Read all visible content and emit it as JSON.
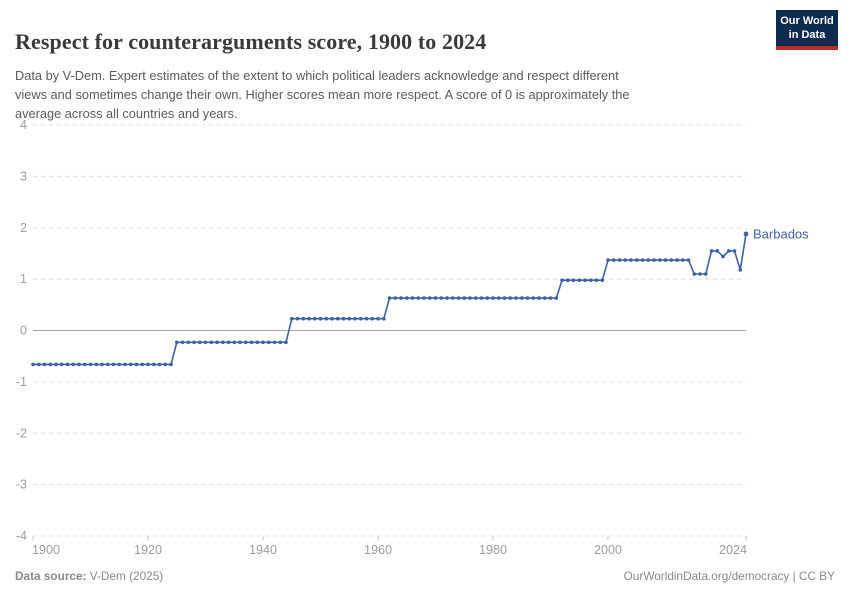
{
  "header": {
    "title": "Respect for counterarguments score, 1900 to 2024",
    "subtitle_lines": [
      "Data by V-Dem. Expert estimates of the extent to which political leaders acknowledge and respect different",
      "views and sometimes change their own. Higher scores mean more respect. A score of 0 is approximately the",
      "average across all countries and years."
    ],
    "logo": {
      "line1": "Our World",
      "line2": "in Data"
    }
  },
  "chart_data": {
    "type": "line",
    "title": "Respect for counterarguments score, 1900 to 2024",
    "xlabel": "",
    "ylabel": "",
    "xlim": [
      1900,
      2024
    ],
    "ylim": [
      -4,
      4
    ],
    "x_ticks": [
      1900,
      1920,
      1940,
      1960,
      1980,
      2000,
      2024
    ],
    "y_ticks": [
      4,
      3,
      2,
      1,
      0,
      -1,
      -2,
      -3,
      -4
    ],
    "grid": "horizontal-dashed",
    "zero_line": true,
    "legend": "end-of-line-label",
    "point_markers": true,
    "series": [
      {
        "name": "Barbados",
        "color": "#3f61a5",
        "steps": [
          {
            "from": 1900,
            "to": 1924,
            "value": -0.66
          },
          {
            "from": 1925,
            "to": 1944,
            "value": -0.23
          },
          {
            "from": 1945,
            "to": 1961,
            "value": 0.23
          },
          {
            "from": 1962,
            "to": 1991,
            "value": 0.63
          },
          {
            "from": 1992,
            "to": 1999,
            "value": 0.98
          },
          {
            "from": 2000,
            "to": 2014,
            "value": 1.37
          },
          {
            "from": 2015,
            "to": 2017,
            "value": 1.1
          },
          {
            "from": 2018,
            "to": 2019,
            "value": 1.55
          },
          {
            "from": 2020,
            "to": 2020,
            "value": 1.44
          },
          {
            "from": 2021,
            "to": 2022,
            "value": 1.55
          },
          {
            "from": 2023,
            "to": 2023,
            "value": 1.18
          },
          {
            "from": 2024,
            "to": 2024,
            "value": 1.88
          }
        ]
      }
    ]
  },
  "footer": {
    "source_label": "Data source:",
    "source_value": " V-Dem (2025)",
    "right_text": "OurWorldinData.org/democracy | CC BY"
  },
  "colors": {
    "line": "#3f61a5",
    "grid": "#dedede",
    "zero_line": "#a5a5a5",
    "tick": "#c4c4c4",
    "axis_text": "#9e9e9e",
    "logo_bg": "#0d2b4e",
    "logo_red": "#bb2d25"
  }
}
